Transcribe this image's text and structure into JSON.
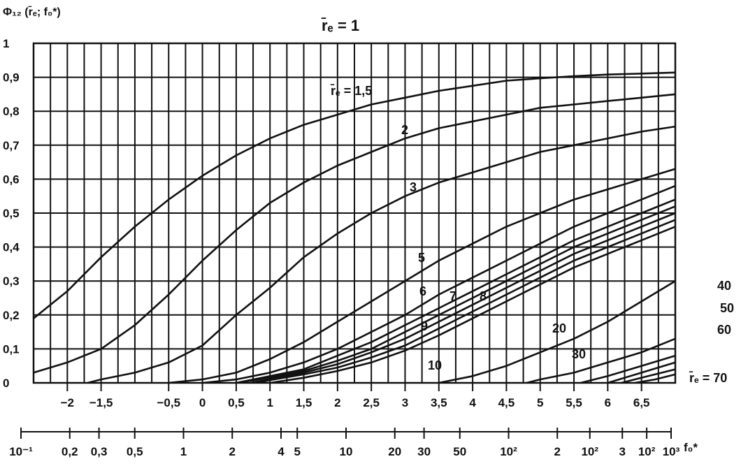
{
  "chart_data": {
    "type": "line",
    "title": "r̄ₑ = 1",
    "ylabel": "Φ₁₂ (r̄ₑ; f₀*)",
    "xlabel": "f₀*",
    "ylim": [
      0,
      1
    ],
    "xlim": [
      -2.5,
      7
    ],
    "grid": true,
    "y_ticks": [
      "0",
      "0,1",
      "0,2",
      "0,3",
      "0,4",
      "0,5",
      "0,6",
      "0,7",
      "0,8",
      "0,9",
      "1"
    ],
    "x_axis_top_ticks": [
      {
        "v": -2,
        "label": "−2"
      },
      {
        "v": -1.5,
        "label": "−1,5"
      },
      {
        "v": -0.5,
        "label": "−0,5"
      },
      {
        "v": 0,
        "label": "0"
      },
      {
        "v": 0.5,
        "label": "0,5"
      },
      {
        "v": 1,
        "label": "1"
      },
      {
        "v": 1.5,
        "label": "1,5"
      },
      {
        "v": 2,
        "label": "2"
      },
      {
        "v": 2.5,
        "label": "2,5"
      },
      {
        "v": 3,
        "label": "3"
      },
      {
        "v": 3.5,
        "label": "3,5"
      },
      {
        "v": 4,
        "label": "4"
      },
      {
        "v": 4.5,
        "label": "4,5"
      },
      {
        "v": 5,
        "label": "5"
      },
      {
        "v": 5.5,
        "label": "5,5"
      },
      {
        "v": 6,
        "label": "6"
      },
      {
        "v": 6.5,
        "label": "6,5"
      }
    ],
    "x_axis_bottom_ticks": [
      {
        "v": -1,
        "label": "10⁻¹"
      },
      {
        "v": -0.7,
        "label": "0,2"
      },
      {
        "v": -0.52,
        "label": "0,3"
      },
      {
        "v": -0.3,
        "label": "0,5"
      },
      {
        "v": 0,
        "label": "1"
      },
      {
        "v": 0.3,
        "label": "2"
      },
      {
        "v": 0.6,
        "label": "4"
      },
      {
        "v": 0.7,
        "label": "5"
      },
      {
        "v": 1,
        "label": "10"
      },
      {
        "v": 1.3,
        "label": "20"
      },
      {
        "v": 1.48,
        "label": "30"
      },
      {
        "v": 1.7,
        "label": "50"
      },
      {
        "v": 2,
        "label": "10²"
      },
      {
        "v": 2.3,
        "label": "2"
      },
      {
        "v": 2.5,
        "label": "10²"
      },
      {
        "v": 2.7,
        "label": "3"
      },
      {
        "v": 2.85,
        "label": "10²"
      },
      {
        "v": 3,
        "label": "10³"
      }
    ],
    "x_axis_bottom_unit": "f₀*",
    "series": [
      {
        "name": "r̄ₑ = 1",
        "label": "",
        "x": [
          -2.5,
          -2,
          -1.5,
          -1,
          -0.5,
          0,
          0.5,
          1,
          1.5,
          2,
          2.5,
          3,
          3.5,
          4,
          4.5,
          5,
          5.5,
          6,
          6.5,
          7
        ],
        "y": [
          0.19,
          0.27,
          0.37,
          0.46,
          0.54,
          0.61,
          0.67,
          0.72,
          0.76,
          0.79,
          0.82,
          0.84,
          0.86,
          0.875,
          0.89,
          0.897,
          0.903,
          0.908,
          0.911,
          0.914
        ]
      },
      {
        "name": "r̄ₑ = 1,5",
        "label": "r̄ₑ = 1,5",
        "x": [
          -2.5,
          -2,
          -1.5,
          -1,
          -0.5,
          0,
          0.5,
          1,
          1.5,
          2,
          2.5,
          3,
          3.5,
          4,
          4.5,
          5,
          5.5,
          6,
          6.5,
          7
        ],
        "y": [
          0.03,
          0.06,
          0.1,
          0.17,
          0.26,
          0.36,
          0.45,
          0.53,
          0.59,
          0.64,
          0.68,
          0.72,
          0.75,
          0.77,
          0.79,
          0.81,
          0.82,
          0.83,
          0.84,
          0.85
        ]
      },
      {
        "name": "r̄ₑ = 2",
        "label": "2",
        "x": [
          -1.7,
          -1.5,
          -1,
          -0.5,
          0,
          0.5,
          1,
          1.5,
          2,
          2.5,
          3,
          3.5,
          4,
          4.5,
          5,
          5.5,
          6,
          6.5,
          7
        ],
        "y": [
          0.0,
          0.01,
          0.03,
          0.06,
          0.11,
          0.2,
          0.28,
          0.37,
          0.44,
          0.5,
          0.55,
          0.59,
          0.62,
          0.65,
          0.68,
          0.7,
          0.72,
          0.74,
          0.755
        ]
      },
      {
        "name": "r̄ₑ = 3",
        "label": "3",
        "x": [
          -0.5,
          0,
          0.5,
          1,
          1.5,
          2,
          2.5,
          3,
          3.5,
          4,
          4.5,
          5,
          5.5,
          6,
          6.5,
          7
        ],
        "y": [
          0.0,
          0.01,
          0.03,
          0.07,
          0.12,
          0.18,
          0.24,
          0.3,
          0.36,
          0.41,
          0.46,
          0.5,
          0.54,
          0.57,
          0.6,
          0.63
        ]
      },
      {
        "name": "r̄ₑ = 5",
        "label": "5",
        "x": [
          0,
          0.5,
          1,
          1.5,
          2,
          2.5,
          3,
          3.5,
          4,
          4.5,
          5,
          5.5,
          6,
          6.5,
          7
        ],
        "y": [
          0.0,
          0.01,
          0.03,
          0.06,
          0.1,
          0.15,
          0.2,
          0.26,
          0.31,
          0.36,
          0.41,
          0.46,
          0.5,
          0.54,
          0.58
        ]
      },
      {
        "name": "r̄ₑ = 6",
        "label": "6",
        "x": [
          0.5,
          1,
          1.5,
          2,
          2.5,
          3,
          3.5,
          4,
          4.5,
          5,
          5.5,
          6,
          6.5,
          7
        ],
        "y": [
          0.0,
          0.02,
          0.04,
          0.08,
          0.12,
          0.17,
          0.22,
          0.27,
          0.32,
          0.37,
          0.42,
          0.46,
          0.5,
          0.54
        ]
      },
      {
        "name": "r̄ₑ = 7",
        "label": "7",
        "x": [
          0.5,
          1,
          1.5,
          2,
          2.5,
          3,
          3.5,
          4,
          4.5,
          5,
          5.5,
          6,
          6.5,
          7
        ],
        "y": [
          0.0,
          0.015,
          0.035,
          0.065,
          0.1,
          0.15,
          0.2,
          0.25,
          0.3,
          0.35,
          0.4,
          0.44,
          0.48,
          0.52
        ]
      },
      {
        "name": "r̄ₑ = 8",
        "label": "8",
        "x": [
          0.7,
          1,
          1.5,
          2,
          2.5,
          3,
          3.5,
          4,
          4.5,
          5,
          5.5,
          6,
          6.5,
          7
        ],
        "y": [
          0.0,
          0.01,
          0.03,
          0.055,
          0.09,
          0.13,
          0.18,
          0.23,
          0.28,
          0.33,
          0.38,
          0.42,
          0.46,
          0.5
        ]
      },
      {
        "name": "r̄ₑ = 9",
        "label": "9",
        "x": [
          0.8,
          1,
          1.5,
          2,
          2.5,
          3,
          3.5,
          4,
          4.5,
          5,
          5.5,
          6,
          6.5,
          7
        ],
        "y": [
          0.0,
          0.008,
          0.025,
          0.045,
          0.075,
          0.11,
          0.16,
          0.21,
          0.26,
          0.31,
          0.36,
          0.4,
          0.44,
          0.48
        ]
      },
      {
        "name": "r̄ₑ = 10",
        "label": "10",
        "x": [
          1,
          1.5,
          2,
          2.5,
          3,
          3.5,
          4,
          4.5,
          5,
          5.5,
          6,
          6.5,
          7
        ],
        "y": [
          0.0,
          0.015,
          0.035,
          0.06,
          0.095,
          0.14,
          0.19,
          0.24,
          0.29,
          0.34,
          0.38,
          0.42,
          0.46
        ]
      },
      {
        "name": "r̄ₑ = 20",
        "label": "20",
        "x": [
          3.5,
          4,
          4.5,
          5,
          5.5,
          6,
          6.5,
          7
        ],
        "y": [
          0.0,
          0.02,
          0.05,
          0.09,
          0.13,
          0.18,
          0.24,
          0.3
        ]
      },
      {
        "name": "r̄ₑ = 30",
        "label": "30",
        "x": [
          4.8,
          5,
          5.5,
          6,
          6.5,
          7
        ],
        "y": [
          0.0,
          0.01,
          0.03,
          0.06,
          0.09,
          0.13
        ]
      },
      {
        "name": "r̄ₑ = 40",
        "label": "40",
        "x": [
          5.6,
          6,
          6.5,
          7
        ],
        "y": [
          0.0,
          0.02,
          0.05,
          0.08
        ]
      },
      {
        "name": "r̄ₑ = 50",
        "label": "50",
        "x": [
          6.0,
          6.5,
          7
        ],
        "y": [
          0.0,
          0.03,
          0.06
        ]
      },
      {
        "name": "r̄ₑ = 60",
        "label": "60",
        "x": [
          6.2,
          6.6,
          7
        ],
        "y": [
          0.0,
          0.02,
          0.04
        ]
      },
      {
        "name": "r̄ₑ = 70",
        "label": "r̄ₑ = 70",
        "x": [
          6.4,
          6.7,
          7
        ],
        "y": [
          0.0,
          0.01,
          0.025
        ]
      }
    ]
  }
}
